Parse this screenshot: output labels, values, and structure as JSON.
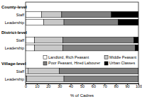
{
  "chart_data": {
    "type": "bar",
    "orientation": "horizontal",
    "stacked": true,
    "groups": [
      "County-level",
      "District-level",
      "Village-level"
    ],
    "categories": [
      "Staff",
      "Leadership",
      "Staff",
      "Leadership",
      "Staff",
      "Leadership"
    ],
    "series": [
      {
        "name": "Landlord, Rich Peasant",
        "color": "#ffffff",
        "values": [
          14,
          16,
          8,
          8,
          2,
          1
        ]
      },
      {
        "name": "Middle Peasant",
        "color": "#c8c8c8",
        "values": [
          18,
          18,
          25,
          25,
          28,
          33
        ]
      },
      {
        "name": "Poor Peasant, Hired Labourer",
        "color": "#808080",
        "values": [
          44,
          48,
          63,
          64,
          70,
          66
        ]
      },
      {
        "name": "Urban Classes",
        "color": "#000000",
        "values": [
          24,
          18,
          4,
          3,
          0,
          0
        ]
      }
    ],
    "x_label": "% of Cadres",
    "xlim": [
      0,
      100
    ],
    "xticks": [
      0,
      10,
      20,
      30,
      40,
      50,
      60,
      70,
      80,
      90,
      100
    ],
    "legend": "right",
    "grid": false
  }
}
